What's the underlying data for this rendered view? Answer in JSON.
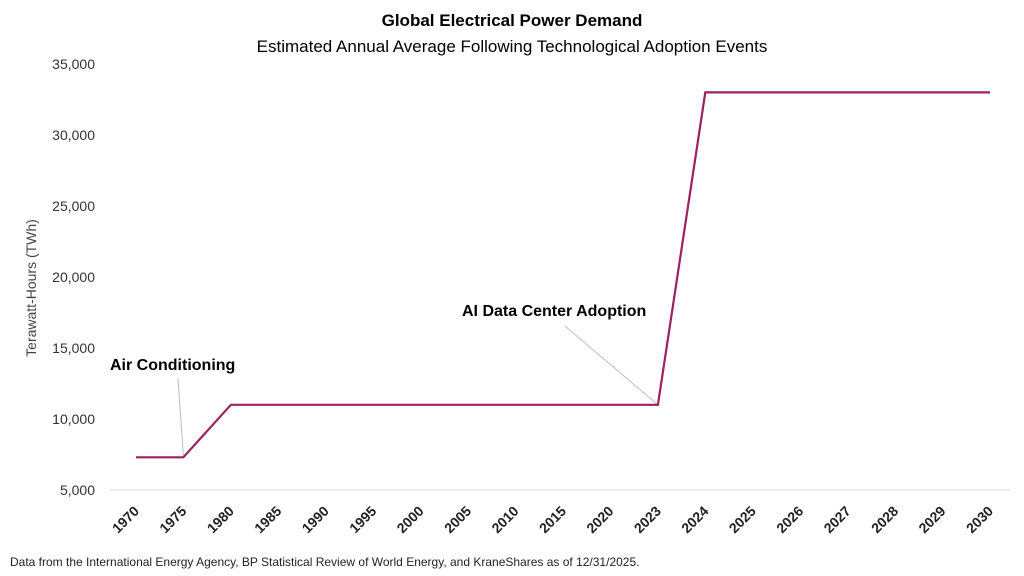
{
  "chart_data": {
    "type": "line",
    "title": "Global Electrical Power Demand",
    "subtitle": "Estimated Annual Average Following Technological Adoption Events",
    "ylabel": "Terawatt-Hours (TWh)",
    "xlabel": "",
    "ylim": [
      5000,
      35000
    ],
    "yticks": [
      5000,
      10000,
      15000,
      20000,
      25000,
      30000,
      35000
    ],
    "ytick_labels": [
      "5,000",
      "10,000",
      "15,000",
      "20,000",
      "25,000",
      "30,000",
      "35,000"
    ],
    "grid": false,
    "legend": "none",
    "categories": [
      "1970",
      "1975",
      "1980",
      "1985",
      "1990",
      "1995",
      "2000",
      "2005",
      "2010",
      "2015",
      "2020",
      "2023",
      "2024",
      "2025",
      "2026",
      "2027",
      "2028",
      "2029",
      "2030"
    ],
    "series": [
      {
        "color": "#9b2160",
        "values": [
          7300,
          7300,
          11000,
          11000,
          11000,
          11000,
          11000,
          11000,
          11000,
          11000,
          11000,
          11000,
          33000,
          33000,
          33000,
          33000,
          33000,
          33000,
          33000
        ]
      }
    ],
    "annotations": [
      {
        "text": "Air Conditioning",
        "category": "1975",
        "value": 7300
      },
      {
        "text": "AI Data Center Adoption",
        "category": "2023",
        "value": 11000
      }
    ]
  },
  "footer": {
    "source": "Data from the International Energy Agency, BP Statistical Review of World Energy, and KraneShares as of 12/31/2025."
  }
}
